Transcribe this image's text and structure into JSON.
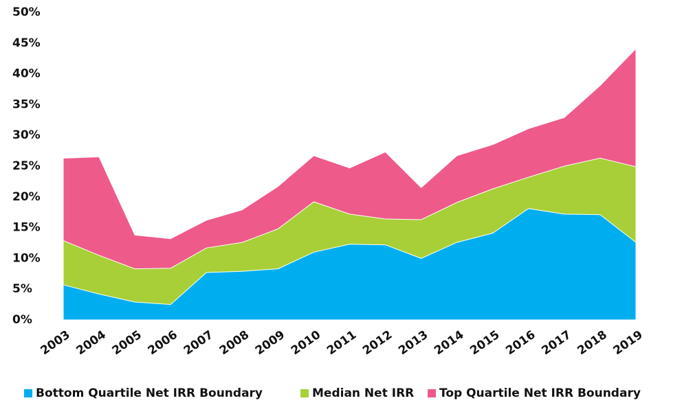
{
  "chart_data": {
    "type": "area",
    "categories": [
      "2003",
      "2004",
      "2005",
      "2006",
      "2007",
      "2008",
      "2009",
      "2010",
      "2011",
      "2012",
      "2013",
      "2014",
      "2015",
      "2016",
      "2017",
      "2018",
      "2019"
    ],
    "series": [
      {
        "name": "Bottom Quartile Net IRR Boundary",
        "color": "#00aeef",
        "values": [
          5.7,
          4.2,
          2.9,
          2.5,
          7.7,
          7.9,
          8.3,
          11.0,
          12.3,
          12.2,
          10.0,
          12.6,
          14.1,
          18.1,
          17.2,
          17.1,
          12.6
        ]
      },
      {
        "name": "Median Net IRR",
        "color": "#a8cf38",
        "values": [
          12.9,
          10.5,
          8.3,
          8.4,
          11.7,
          12.6,
          14.8,
          19.2,
          17.2,
          16.4,
          16.3,
          19.1,
          21.3,
          23.2,
          25.0,
          26.3,
          24.9
        ]
      },
      {
        "name": "Top Quartile Net IRR Boundary",
        "color": "#ee5a8a",
        "values": [
          26.3,
          26.5,
          13.8,
          13.2,
          16.2,
          17.9,
          21.7,
          26.7,
          24.7,
          27.3,
          21.5,
          26.7,
          28.5,
          31.1,
          32.9,
          38.1,
          44.1
        ]
      }
    ],
    "ylim": [
      0,
      50
    ],
    "yticks": [
      {
        "value": 0,
        "label": "0%"
      },
      {
        "value": 5,
        "label": "5%"
      },
      {
        "value": 10,
        "label": "10%"
      },
      {
        "value": 15,
        "label": "15%"
      },
      {
        "value": 20,
        "label": "20%"
      },
      {
        "value": 25,
        "label": "25%"
      },
      {
        "value": 30,
        "label": "30%"
      },
      {
        "value": 35,
        "label": "35%"
      },
      {
        "value": 40,
        "label": "40%"
      },
      {
        "value": 45,
        "label": "45%"
      },
      {
        "value": 50,
        "label": "50%"
      }
    ],
    "legend": "bottom"
  }
}
